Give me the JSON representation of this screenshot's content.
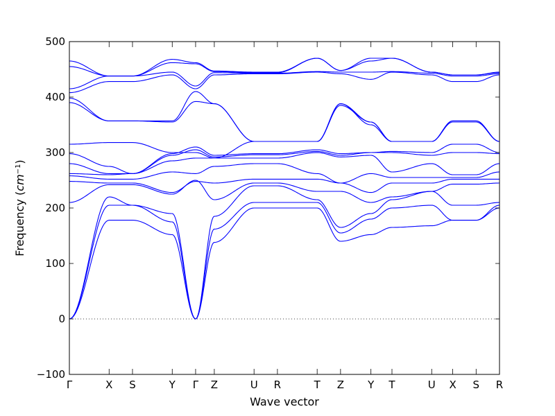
{
  "chart_data": {
    "type": "line",
    "title": "",
    "xlabel": "Wave vector",
    "ylabel": "Frequency (cm⁻¹)",
    "ylabel_main": "Frequency (",
    "ylabel_unit": "cm",
    "ylabel_exp": "−1",
    "ylabel_close": ")",
    "ylim": [
      -100,
      500
    ],
    "yticks": [
      -100,
      0,
      100,
      200,
      300,
      400,
      500
    ],
    "xlim": [
      0,
      9.2
    ],
    "grid": false,
    "zero_line": 0,
    "band_color": "#0000ff",
    "high_symmetry_points": [
      {
        "label": "Γ",
        "x": 0.0
      },
      {
        "label": "X",
        "x": 0.85
      },
      {
        "label": "S",
        "x": 1.35
      },
      {
        "label": "Y",
        "x": 2.2
      },
      {
        "label": "Γ",
        "x": 2.7
      },
      {
        "label": "Z",
        "x": 3.1
      },
      {
        "label": "U",
        "x": 3.95
      },
      {
        "label": "R",
        "x": 4.45
      },
      {
        "label": "T",
        "x": 5.3
      },
      {
        "label": "Z",
        "x": 5.8
      },
      {
        "label": "Y",
        "x": 6.45
      },
      {
        "label": "T",
        "x": 6.9
      },
      {
        "label": "U",
        "x": 7.75
      },
      {
        "label": "X",
        "x": 8.2
      },
      {
        "label": "S",
        "x": 8.7
      },
      {
        "label": "R",
        "x": 9.2
      }
    ],
    "series": [
      {
        "x": [
          0,
          0.85,
          1.35,
          2.2,
          2.7,
          3.1,
          3.95,
          4.45,
          5.3,
          5.8,
          6.45,
          6.9,
          7.75,
          8.2,
          8.7,
          9.2
        ],
        "values": [
          0,
          178,
          178,
          152,
          0,
          138,
          200,
          200,
          200,
          140,
          152,
          165,
          168,
          178,
          178,
          200
        ]
      },
      {
        "x": [
          0,
          0.85,
          1.35,
          2.2,
          2.7,
          3.1,
          3.95,
          4.45,
          5.3,
          5.8,
          6.45,
          6.9,
          7.75,
          8.2,
          8.7,
          9.2
        ],
        "values": [
          0,
          205,
          205,
          175,
          0,
          162,
          210,
          210,
          210,
          155,
          180,
          200,
          205,
          178,
          178,
          205
        ]
      },
      {
        "x": [
          0,
          0.85,
          1.35,
          2.2,
          2.7,
          3.1,
          3.95,
          4.45,
          5.3,
          5.8,
          6.45,
          6.9,
          7.75,
          8.2,
          8.7,
          9.2
        ],
        "values": [
          0,
          220,
          205,
          190,
          0,
          185,
          240,
          240,
          215,
          165,
          190,
          215,
          230,
          205,
          205,
          210
        ]
      },
      {
        "x": [
          0,
          0.85,
          1.35,
          2.2,
          2.7,
          3.1,
          3.95,
          4.45,
          5.3,
          5.8,
          6.45,
          6.9,
          7.75,
          8.2,
          8.7,
          9.2
        ],
        "values": [
          210,
          242,
          242,
          225,
          250,
          215,
          245,
          245,
          230,
          230,
          210,
          220,
          230,
          243,
          243,
          245
        ]
      },
      {
        "x": [
          0,
          0.85,
          1.35,
          2.2,
          2.7,
          3.1,
          3.95,
          4.45,
          5.3,
          5.8,
          6.45,
          6.9,
          7.75,
          8.2,
          8.7,
          9.2
        ],
        "values": [
          248,
          245,
          245,
          228,
          248,
          245,
          252,
          252,
          252,
          245,
          228,
          245,
          245,
          252,
          252,
          252
        ]
      },
      {
        "x": [
          0,
          0.85,
          1.35,
          2.2,
          2.7,
          3.1,
          3.95,
          4.45,
          5.3,
          5.8,
          6.45,
          6.9,
          7.75,
          8.2,
          8.7,
          9.2
        ],
        "values": [
          258,
          252,
          252,
          265,
          262,
          275,
          280,
          280,
          262,
          245,
          262,
          255,
          255,
          255,
          255,
          265
        ]
      },
      {
        "x": [
          0,
          0.85,
          1.35,
          2.2,
          2.7,
          3.1,
          3.95,
          4.45,
          5.3,
          5.8,
          6.45,
          6.9,
          7.75,
          8.2,
          8.7,
          9.2
        ],
        "values": [
          262,
          260,
          262,
          285,
          290,
          290,
          290,
          290,
          300,
          292,
          295,
          265,
          280,
          260,
          260,
          280
        ]
      },
      {
        "x": [
          0,
          0.85,
          1.35,
          2.2,
          2.7,
          3.1,
          3.95,
          4.45,
          5.3,
          5.8,
          6.45,
          6.9,
          7.75,
          8.2,
          8.7,
          9.2
        ],
        "values": [
          280,
          262,
          262,
          295,
          305,
          292,
          296,
          296,
          302,
          295,
          300,
          300,
          295,
          300,
          300,
          298
        ]
      },
      {
        "x": [
          0,
          0.85,
          1.35,
          2.2,
          2.7,
          3.1,
          3.95,
          4.45,
          5.3,
          5.8,
          6.45,
          6.9,
          7.75,
          8.2,
          8.7,
          9.2
        ],
        "values": [
          298,
          275,
          262,
          298,
          310,
          295,
          298,
          298,
          305,
          298,
          300,
          302,
          300,
          315,
          315,
          300
        ]
      },
      {
        "x": [
          0,
          0.85,
          1.35,
          2.2,
          2.7,
          3.1,
          3.95,
          4.45,
          5.3,
          5.8,
          6.45,
          6.9,
          7.75,
          8.2,
          8.7,
          9.2
        ],
        "values": [
          315,
          318,
          318,
          300,
          300,
          290,
          320,
          320,
          320,
          385,
          355,
          320,
          320,
          355,
          355,
          320
        ]
      },
      {
        "x": [
          0,
          0.85,
          1.35,
          2.2,
          2.7,
          3.1,
          3.95,
          4.45,
          5.3,
          5.8,
          6.45,
          6.9,
          7.75,
          8.2,
          8.7,
          9.2
        ],
        "values": [
          390,
          357,
          357,
          355,
          392,
          388,
          320,
          320,
          320,
          388,
          350,
          320,
          320,
          357,
          357,
          320
        ]
      },
      {
        "x": [
          0,
          0.85,
          1.35,
          2.2,
          2.7,
          3.1,
          3.95,
          4.45,
          5.3,
          5.8,
          6.45,
          6.9,
          7.75,
          8.2,
          8.7,
          9.2
        ],
        "values": [
          398,
          357,
          357,
          357,
          410,
          388,
          320,
          320,
          320,
          388,
          355,
          320,
          320,
          357,
          357,
          320
        ]
      },
      {
        "x": [
          0,
          0.85,
          1.35,
          2.2,
          2.7,
          3.1,
          3.95,
          4.45,
          5.3,
          5.8,
          6.45,
          6.9,
          7.75,
          8.2,
          8.7,
          9.2
        ],
        "values": [
          408,
          428,
          428,
          440,
          415,
          440,
          442,
          442,
          445,
          442,
          432,
          445,
          440,
          428,
          428,
          440
        ]
      },
      {
        "x": [
          0,
          0.85,
          1.35,
          2.2,
          2.7,
          3.1,
          3.95,
          4.45,
          5.3,
          5.8,
          6.45,
          6.9,
          7.75,
          8.2,
          8.7,
          9.2
        ],
        "values": [
          415,
          438,
          438,
          445,
          420,
          444,
          443,
          443,
          446,
          445,
          445,
          446,
          443,
          438,
          438,
          442
        ]
      },
      {
        "x": [
          0,
          0.85,
          1.35,
          2.2,
          2.7,
          3.1,
          3.95,
          4.45,
          5.3,
          5.8,
          6.45,
          6.9,
          7.75,
          8.2,
          8.7,
          9.2
        ],
        "values": [
          455,
          438,
          438,
          462,
          460,
          446,
          444,
          444,
          470,
          448,
          465,
          470,
          445,
          440,
          440,
          444
        ]
      },
      {
        "x": [
          0,
          0.85,
          1.35,
          2.2,
          2.7,
          3.1,
          3.95,
          4.45,
          5.3,
          5.8,
          6.45,
          6.9,
          7.75,
          8.2,
          8.7,
          9.2
        ],
        "values": [
          465,
          438,
          438,
          468,
          462,
          447,
          445,
          445,
          470,
          448,
          470,
          470,
          445,
          440,
          440,
          445
        ]
      }
    ]
  }
}
